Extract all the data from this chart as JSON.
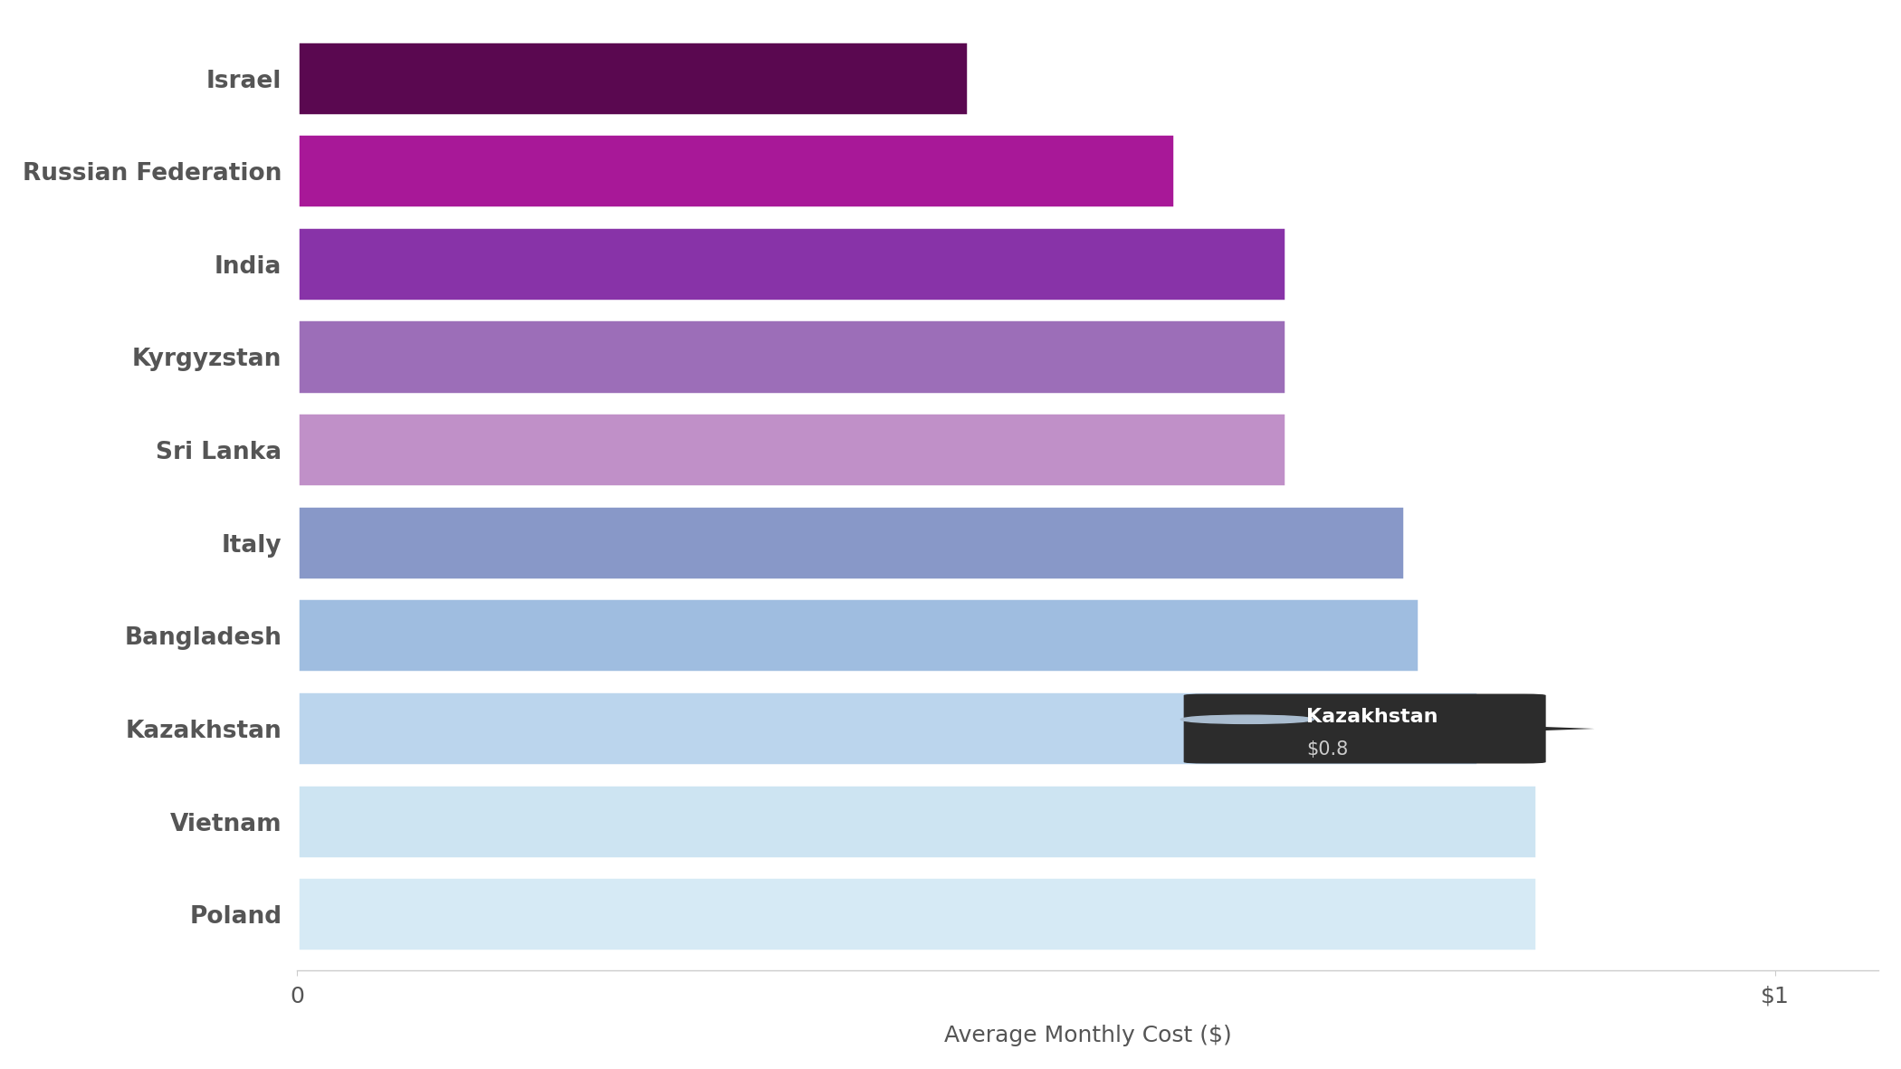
{
  "categories": [
    "Poland",
    "Vietnam",
    "Kazakhstan",
    "Bangladesh",
    "Italy",
    "Sri Lanka",
    "Kyrgyzstan",
    "India",
    "Russian Federation",
    "Israel"
  ],
  "values": [
    0.84,
    0.84,
    0.8,
    0.76,
    0.75,
    0.67,
    0.67,
    0.67,
    0.595,
    0.455
  ],
  "bar_colors": [
    "#d6eaf5",
    "#cde4f2",
    "#bbd5ed",
    "#9fbde0",
    "#8898c8",
    "#c090c8",
    "#9c6eb8",
    "#8833a8",
    "#a81898",
    "#5a0850"
  ],
  "tooltip_country": "Kazakhstan",
  "tooltip_value": "$0.8",
  "xlabel": "Average Monthly Cost ($)",
  "background_color": "#ffffff",
  "bar_height": 0.82,
  "xlim": [
    0,
    1.07
  ],
  "label_fontsize": 19,
  "tick_fontsize": 18,
  "xlabel_fontsize": 18
}
